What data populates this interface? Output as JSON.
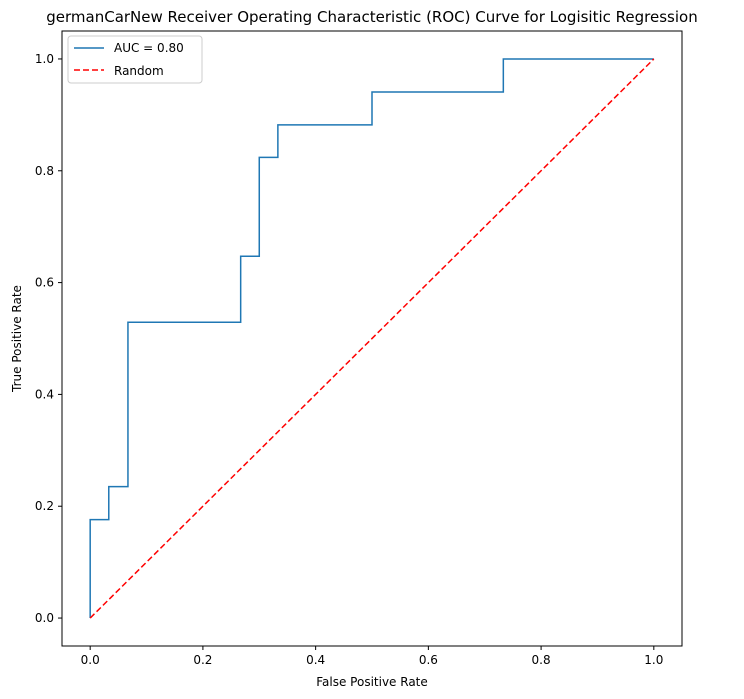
{
  "chart_data": {
    "type": "line",
    "title": "germanCarNew Receiver Operating Characteristic (ROC) Curve for Logisitic Regression",
    "xlabel": "False Positive Rate",
    "ylabel": "True Positive Rate",
    "xlim": [
      -0.05,
      1.05
    ],
    "ylim": [
      -0.05,
      1.05
    ],
    "xticks": [
      0.0,
      0.2,
      0.4,
      0.6,
      0.8,
      1.0
    ],
    "yticks": [
      0.0,
      0.2,
      0.4,
      0.6,
      0.8,
      1.0
    ],
    "xtick_labels": [
      "0.0",
      "0.2",
      "0.4",
      "0.6",
      "0.8",
      "1.0"
    ],
    "ytick_labels": [
      "0.0",
      "0.2",
      "0.4",
      "0.6",
      "0.8",
      "1.0"
    ],
    "grid": false,
    "legend_position": "top-left",
    "series": [
      {
        "name": "AUC = 0.80",
        "color": "#1f77b4",
        "style": "solid",
        "x": [
          0.0,
          0.0,
          0.033,
          0.033,
          0.067,
          0.067,
          0.267,
          0.267,
          0.3,
          0.3,
          0.333,
          0.333,
          0.5,
          0.5,
          0.733,
          0.733,
          1.0
        ],
        "y": [
          0.0,
          0.176,
          0.176,
          0.235,
          0.235,
          0.529,
          0.529,
          0.647,
          0.647,
          0.824,
          0.824,
          0.882,
          0.882,
          0.941,
          0.941,
          1.0,
          1.0
        ]
      },
      {
        "name": "Random",
        "color": "#ff0000",
        "style": "dashed",
        "x": [
          0.0,
          1.0
        ],
        "y": [
          0.0,
          1.0
        ]
      }
    ]
  }
}
